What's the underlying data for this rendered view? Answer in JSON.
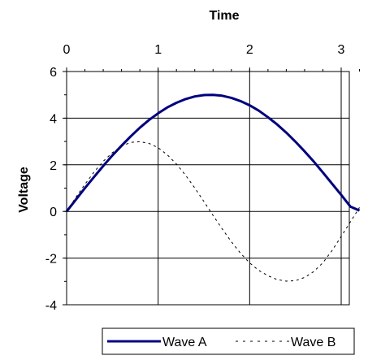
{
  "chart_data": {
    "type": "line",
    "title": "",
    "xlabel": "Time",
    "ylabel": "Voltage",
    "xlim": [
      0,
      3.2
    ],
    "ylim": [
      -4,
      6
    ],
    "x_ticks": [
      0,
      1,
      2,
      3
    ],
    "y_ticks": [
      -4,
      -2,
      0,
      2,
      4,
      6
    ],
    "x_axis_position": "top",
    "grid": true,
    "legend": "bottom",
    "series": [
      {
        "name": "Wave A",
        "color": "#000080",
        "style": "solid",
        "x": [
          0,
          0.1,
          0.2,
          0.3,
          0.4,
          0.5,
          0.6,
          0.7,
          0.8,
          0.9,
          1.0,
          1.1,
          1.2,
          1.3,
          1.4,
          1.5,
          1.6,
          1.7,
          1.8,
          1.9,
          2.0,
          2.1,
          2.2,
          2.3,
          2.4,
          2.5,
          2.6,
          2.7,
          2.8,
          2.9,
          3.0,
          3.1,
          3.2
        ],
        "y": [
          0,
          0.5,
          1.0,
          1.48,
          1.95,
          2.4,
          2.82,
          3.22,
          3.59,
          3.92,
          4.21,
          4.46,
          4.66,
          4.82,
          4.93,
          4.99,
          5.0,
          4.96,
          4.87,
          4.73,
          4.55,
          4.32,
          4.04,
          3.73,
          3.38,
          2.99,
          2.58,
          2.14,
          1.67,
          1.19,
          0.71,
          0.21,
          0.04
        ]
      },
      {
        "name": "Wave B",
        "color": "#000000",
        "style": "dashed",
        "x": [
          0,
          0.1,
          0.2,
          0.3,
          0.4,
          0.5,
          0.6,
          0.7,
          0.8,
          0.9,
          1.0,
          1.1,
          1.2,
          1.3,
          1.4,
          1.5,
          1.6,
          1.7,
          1.8,
          1.9,
          2.0,
          2.1,
          2.2,
          2.3,
          2.4,
          2.5,
          2.6,
          2.7,
          2.8,
          2.9,
          3.0,
          3.1,
          3.2
        ],
        "y": [
          0,
          0.6,
          1.16,
          1.69,
          2.15,
          2.52,
          2.8,
          2.96,
          2.99,
          2.92,
          2.73,
          2.43,
          2.03,
          1.55,
          1.01,
          0.43,
          -0.17,
          -0.75,
          -1.3,
          -1.79,
          -2.21,
          -2.53,
          -2.76,
          -2.92,
          -2.99,
          -2.97,
          -2.83,
          -2.58,
          -2.2,
          -1.68,
          -1.07,
          -0.45,
          0.17
        ]
      }
    ]
  }
}
